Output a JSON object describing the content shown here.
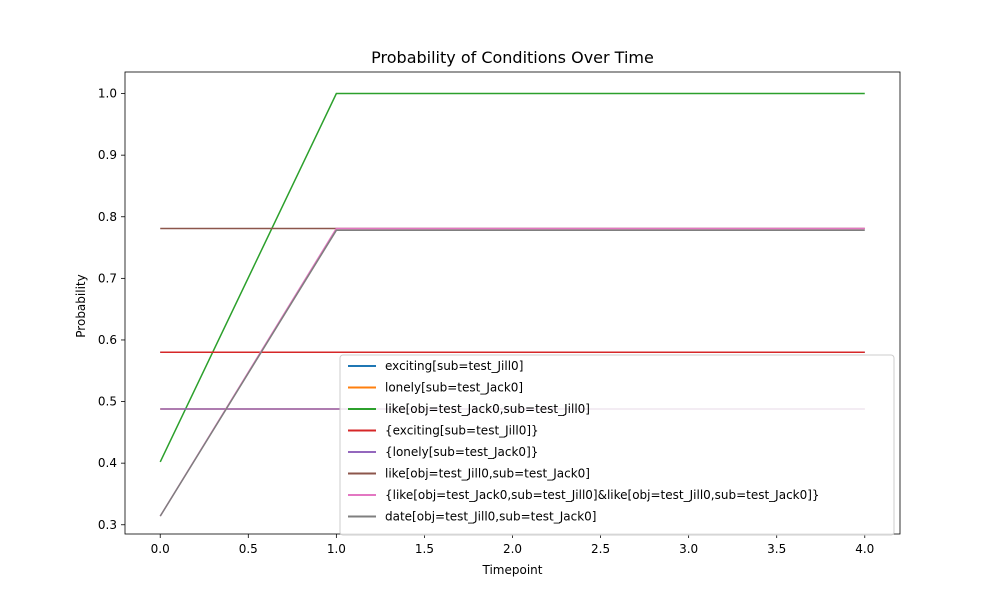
{
  "chart_data": {
    "type": "line",
    "title": "Probability of Conditions Over Time",
    "xlabel": "Timepoint",
    "ylabel": "Probability",
    "xlim": [
      -0.2,
      4.2
    ],
    "ylim": [
      0.285,
      1.035
    ],
    "xticks": [
      "0.0",
      "0.5",
      "1.0",
      "1.5",
      "2.0",
      "2.5",
      "3.0",
      "3.5",
      "4.0"
    ],
    "yticks": [
      "0.3",
      "0.4",
      "0.5",
      "0.6",
      "0.7",
      "0.8",
      "0.9",
      "1.0"
    ],
    "grid": false,
    "legend_position": "lower-right",
    "x": [
      0,
      1,
      2,
      3,
      4
    ],
    "series": [
      {
        "name": "exciting[sub=test_Jill0]",
        "color": "#1f77b4",
        "values": [
          0.58,
          0.58,
          0.58,
          0.58,
          0.58
        ]
      },
      {
        "name": "lonely[sub=test_Jack0]",
        "color": "#ff7f0e",
        "values": [
          0.488,
          0.488,
          0.488,
          0.488,
          0.488
        ]
      },
      {
        "name": "like[obj=test_Jack0,sub=test_Jill0]",
        "color": "#2ca02c",
        "values": [
          0.402,
          1.0,
          1.0,
          1.0,
          1.0
        ]
      },
      {
        "name": "{exciting[sub=test_Jill0]}",
        "color": "#d62728",
        "values": [
          0.58,
          0.58,
          0.58,
          0.58,
          0.58
        ]
      },
      {
        "name": "{lonely[sub=test_Jack0]}",
        "color": "#9467bd",
        "values": [
          0.488,
          0.488,
          0.488,
          0.488,
          0.488
        ]
      },
      {
        "name": "like[obj=test_Jill0,sub=test_Jack0]",
        "color": "#8c564b",
        "values": [
          0.781,
          0.781,
          0.781,
          0.781,
          0.781
        ]
      },
      {
        "name": "{like[obj=test_Jack0,sub=test_Jill0]&like[obj=test_Jill0,sub=test_Jack0]}",
        "color": "#e377c2",
        "values": [
          0.314,
          0.781,
          0.781,
          0.781,
          0.781
        ]
      },
      {
        "name": "date[obj=test_Jill0,sub=test_Jack0]",
        "color": "#7f7f7f",
        "values": [
          0.314,
          0.778,
          0.778,
          0.778,
          0.778
        ]
      }
    ]
  }
}
